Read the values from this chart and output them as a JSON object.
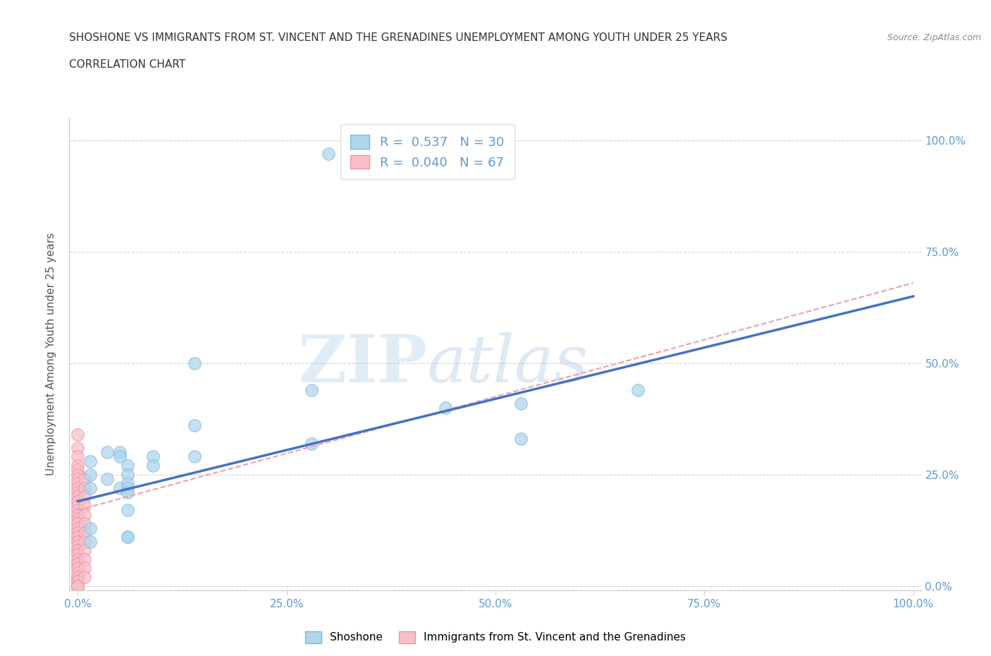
{
  "title_line1": "SHOSHONE VS IMMIGRANTS FROM ST. VINCENT AND THE GRENADINES UNEMPLOYMENT AMONG YOUTH UNDER 25 YEARS",
  "title_line2": "CORRELATION CHART",
  "source_text": "Source: ZipAtlas.com",
  "ylabel": "Unemployment Among Youth under 25 years",
  "watermark_zip": "ZIP",
  "watermark_atlas": "atlas",
  "xlim": [
    -0.01,
    1.01
  ],
  "ylim": [
    -0.01,
    1.05
  ],
  "x_tick_labels": [
    "0.0%",
    "25.0%",
    "50.0%",
    "75.0%",
    "100.0%"
  ],
  "x_tick_positions": [
    0.0,
    0.25,
    0.5,
    0.75,
    1.0
  ],
  "y_tick_labels": [
    "0.0%",
    "25.0%",
    "50.0%",
    "75.0%",
    "100.0%"
  ],
  "y_tick_positions": [
    0.0,
    0.25,
    0.5,
    0.75,
    1.0
  ],
  "shoshone_color": "#aed6ec",
  "shoshone_edge_color": "#7fb8d8",
  "immigrant_color": "#f9bfc9",
  "immigrant_edge_color": "#f090a8",
  "shoshone_R": 0.537,
  "shoshone_N": 30,
  "immigrant_R": 0.04,
  "immigrant_N": 67,
  "shoshone_line_color": "#4472c4",
  "immigrant_line_color": "#e8a0b0",
  "shoshone_points_x": [
    0.3,
    0.14,
    0.14,
    0.05,
    0.05,
    0.05,
    0.44,
    0.14,
    0.28,
    0.28,
    0.09,
    0.09,
    0.53,
    0.67,
    0.53,
    0.015,
    0.015,
    0.015,
    0.015,
    0.015,
    0.035,
    0.035,
    0.06,
    0.06,
    0.06,
    0.06,
    0.06,
    0.06,
    0.06,
    0.06
  ],
  "shoshone_points_y": [
    0.97,
    0.5,
    0.36,
    0.3,
    0.29,
    0.22,
    0.4,
    0.29,
    0.44,
    0.32,
    0.29,
    0.27,
    0.41,
    0.44,
    0.33,
    0.28,
    0.25,
    0.22,
    0.13,
    0.1,
    0.3,
    0.24,
    0.27,
    0.25,
    0.23,
    0.22,
    0.21,
    0.17,
    0.11,
    0.11
  ],
  "immigrant_points_x": [
    0.0,
    0.0,
    0.0,
    0.0,
    0.0,
    0.0,
    0.0,
    0.0,
    0.0,
    0.0,
    0.0,
    0.0,
    0.0,
    0.0,
    0.0,
    0.0,
    0.0,
    0.0,
    0.0,
    0.0,
    0.0,
    0.0,
    0.0,
    0.0,
    0.0,
    0.0,
    0.0,
    0.0,
    0.0,
    0.0,
    0.0,
    0.0,
    0.0,
    0.0,
    0.0,
    0.0,
    0.0,
    0.0,
    0.0,
    0.0,
    0.0,
    0.0,
    0.0,
    0.0,
    0.0,
    0.0,
    0.0,
    0.0,
    0.0,
    0.0,
    0.0,
    0.0,
    0.0,
    0.0,
    0.0,
    0.008,
    0.008,
    0.008,
    0.008,
    0.008,
    0.008,
    0.008,
    0.008,
    0.008,
    0.008,
    0.008,
    0.008
  ],
  "immigrant_points_y": [
    0.34,
    0.31,
    0.29,
    0.27,
    0.26,
    0.25,
    0.24,
    0.23,
    0.22,
    0.21,
    0.2,
    0.19,
    0.19,
    0.18,
    0.17,
    0.16,
    0.16,
    0.15,
    0.14,
    0.14,
    0.13,
    0.12,
    0.12,
    0.11,
    0.11,
    0.1,
    0.1,
    0.09,
    0.08,
    0.08,
    0.07,
    0.07,
    0.06,
    0.05,
    0.05,
    0.04,
    0.04,
    0.03,
    0.02,
    0.02,
    0.01,
    0.01,
    0.01,
    0.0,
    0.0,
    0.0,
    0.0,
    0.0,
    0.0,
    0.0,
    0.0,
    0.0,
    0.0,
    0.0,
    0.0,
    0.24,
    0.22,
    0.2,
    0.18,
    0.16,
    0.14,
    0.12,
    0.1,
    0.08,
    0.06,
    0.04,
    0.02
  ],
  "shoshone_line_x": [
    0.0,
    1.0
  ],
  "shoshone_line_y": [
    0.19,
    0.65
  ],
  "immigrant_line_x": [
    0.0,
    1.0
  ],
  "immigrant_line_y": [
    0.17,
    0.68
  ],
  "grid_color": "#cccccc",
  "background_color": "#ffffff",
  "axis_color": "#cccccc",
  "label_color_blue": "#5b9bd5",
  "right_tick_color": "#5b9bd5"
}
